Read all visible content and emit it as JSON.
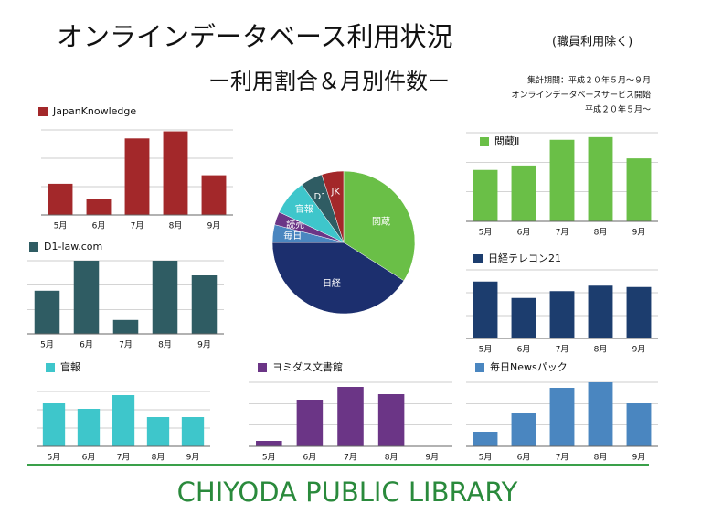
{
  "title": "オンラインデータベース利用状況",
  "title_note": "(職員利用除く)",
  "subtitle": "ー利用割合＆月別件数ー",
  "notes": [
    "集計期間：平成２０年５月〜９月",
    "オンラインデータベースサービス開始",
    "平成２０年５月〜"
  ],
  "footer": "CHIYODA PUBLIC LIBRARY",
  "chart_data": [
    {
      "type": "bar",
      "categories": [
        "5月",
        "6月",
        "7月",
        "8月",
        "9月"
      ],
      "series": [
        {
          "name": "JapanKnowledge",
          "color": "#a3282a",
          "values": [
            1.1,
            0.58,
            2.7,
            2.95,
            1.4
          ]
        }
      ],
      "ylim": [
        0,
        3
      ]
    },
    {
      "type": "bar",
      "categories": [
        "5月",
        "6月",
        "7月",
        "8月",
        "9月"
      ],
      "series": [
        {
          "name": "D1-law.com",
          "color": "#2f5c63",
          "values": [
            59,
            100,
            19,
            100,
            80
          ]
        }
      ],
      "ylim": [
        0,
        100
      ]
    },
    {
      "type": "bar",
      "categories": [
        "5月",
        "6月",
        "7月",
        "8月",
        "9月"
      ],
      "series": [
        {
          "name": "官報",
          "color": "#3ec6cb",
          "values": [
            2.4,
            2.05,
            2.8,
            1.6,
            1.6
          ]
        }
      ],
      "ylim": [
        0,
        3
      ]
    },
    {
      "type": "bar",
      "categories": [
        "5月",
        "6月",
        "7月",
        "8月",
        "9月"
      ],
      "series": [
        {
          "name": "ヨミダス文書館",
          "color": "#6b3586",
          "values": [
            0.3,
            2.55,
            3.25,
            2.85,
            0
          ]
        }
      ],
      "ylim": [
        0,
        3.5
      ]
    },
    {
      "type": "bar",
      "categories": [
        "5月",
        "6月",
        "7月",
        "8月",
        "9月"
      ],
      "series": [
        {
          "name": "毎日Newsパック",
          "color": "#4a86c0",
          "values": [
            0.8,
            1.85,
            3.2,
            3.5,
            2.4
          ]
        }
      ],
      "ylim": [
        0,
        3.5
      ]
    },
    {
      "type": "bar",
      "categories": [
        "5月",
        "6月",
        "7月",
        "8月",
        "9月"
      ],
      "series": [
        {
          "name": "閲蔵Ⅱ",
          "color": "#6abf47",
          "values": [
            58,
            63,
            92,
            95,
            71
          ]
        }
      ],
      "ylim": [
        0,
        100
      ]
    },
    {
      "type": "bar",
      "categories": [
        "5月",
        "6月",
        "7月",
        "8月",
        "9月"
      ],
      "series": [
        {
          "name": "日経テレコン21",
          "color": "#1c3d6e",
          "values": [
            83,
            59,
            69,
            77,
            75
          ]
        }
      ],
      "ylim": [
        0,
        100
      ]
    },
    {
      "type": "pie",
      "categories": [
        "閲蔵",
        "日経",
        "毎日",
        "読売",
        "官報",
        "D1",
        "JK"
      ],
      "values": [
        34,
        41,
        4,
        3,
        8,
        5,
        5
      ],
      "colors": [
        "#6abf47",
        "#1c2f6e",
        "#4a86c0",
        "#6b3586",
        "#3ec6cb",
        "#2f5c63",
        "#a3282a"
      ]
    }
  ]
}
